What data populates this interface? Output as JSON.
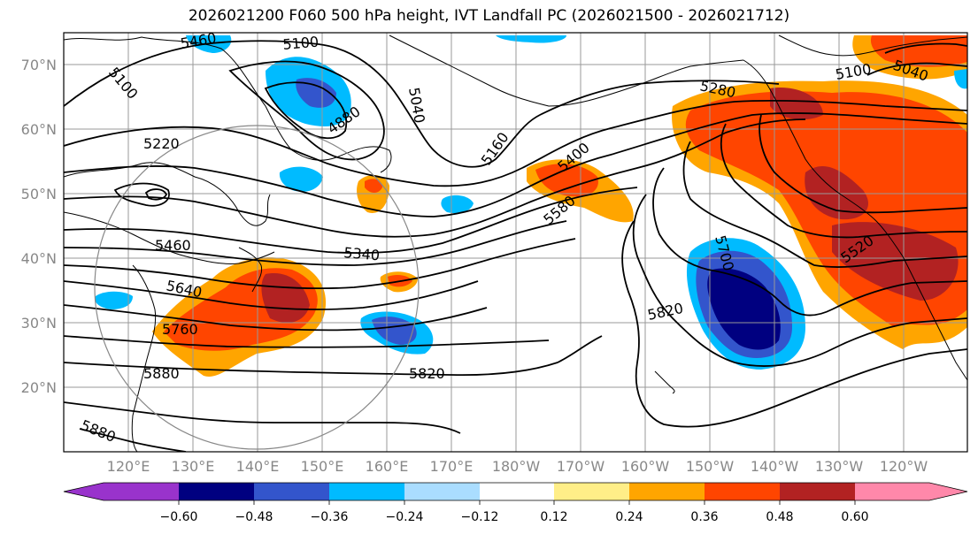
{
  "title": "2026021200 F060 500 hPa height, IVT Landfall PC (2026021500 - 2026021712)",
  "latitude_labels": [
    "70°N",
    "60°N",
    "50°N",
    "40°N",
    "30°N",
    "20°N"
  ],
  "longitude_labels": [
    "120°E",
    "130°E",
    "140°E",
    "150°E",
    "160°E",
    "170°E",
    "180°W",
    "170°W",
    "160°W",
    "150°W",
    "140°W",
    "130°W",
    "120°W"
  ],
  "colorbar": {
    "ticks": [
      "−0.60",
      "−0.48",
      "−0.36",
      "−0.24",
      "−0.12",
      "0.12",
      "0.24",
      "0.36",
      "0.48",
      "0.60"
    ],
    "colors": [
      "#9933cc",
      "#000080",
      "#3355cc",
      "#00bbff",
      "#aaddff",
      "#ffffff",
      "#ffee88",
      "#ffa500",
      "#ff4500",
      "#b22222",
      "#ff88aa"
    ]
  },
  "contour_labels": [
    {
      "text": "5460"
    },
    {
      "text": "5100"
    },
    {
      "text": "5100"
    },
    {
      "text": "5220"
    },
    {
      "text": "4880"
    },
    {
      "text": "5040"
    },
    {
      "text": "5160"
    },
    {
      "text": "5400"
    },
    {
      "text": "5580"
    },
    {
      "text": "5280"
    },
    {
      "text": "5100"
    },
    {
      "text": "5040"
    },
    {
      "text": "5460"
    },
    {
      "text": "5340"
    },
    {
      "text": "5640"
    },
    {
      "text": "5760"
    },
    {
      "text": "5880"
    },
    {
      "text": "5880"
    },
    {
      "text": "5820"
    },
    {
      "text": "5820"
    },
    {
      "text": "5700"
    },
    {
      "text": "5520"
    }
  ]
}
